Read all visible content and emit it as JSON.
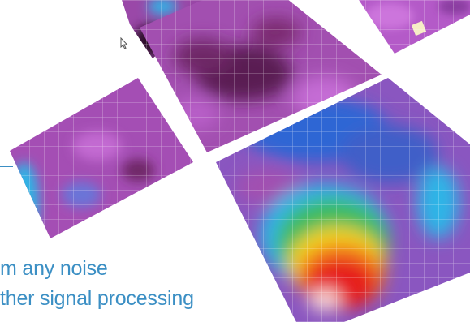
{
  "caption": {
    "line1": "m any noise",
    "line2": "ther signal processing",
    "color": "#3b8fc4"
  },
  "heatmap_palette": [
    "#7a1a5e",
    "#a24fb0",
    "#c36ad2",
    "#6a74d8",
    "#2f66d4",
    "#2fb4e6",
    "#3dbb5e",
    "#f0d21e",
    "#f37a1a",
    "#e61a1a",
    "#f6d2d2"
  ],
  "icons": [
    "arrow-cursor-icon"
  ]
}
